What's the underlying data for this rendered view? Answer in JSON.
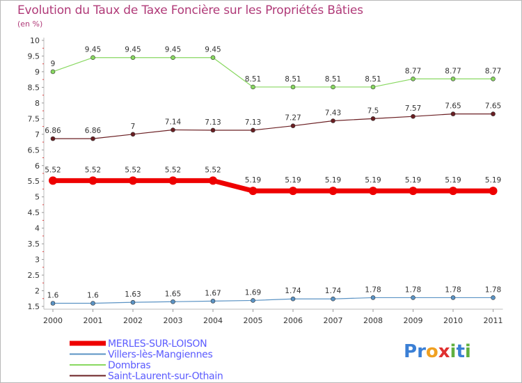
{
  "title": "Evolution du Taux de Taxe Foncière sur les Propriétés Bâties",
  "unit": "(en %)",
  "logo": {
    "text": "Proxiti",
    "letters": [
      "P",
      "r",
      "o",
      "x",
      "i",
      "t",
      "i"
    ],
    "colors": [
      "#3a7fd5",
      "#3a7fd5",
      "#f0a020",
      "#e03030",
      "#60b040",
      "#3a7fd5",
      "#60b040"
    ]
  },
  "chart_data": {
    "type": "line",
    "title": "Evolution du Taux de Taxe Foncière sur les Propriétés Bâties",
    "ylabel": "(en %)",
    "xlabel": "",
    "x": [
      "2000",
      "2001",
      "2002",
      "2003",
      "2004",
      "2005",
      "2006",
      "2007",
      "2008",
      "2009",
      "2010",
      "2011"
    ],
    "ylim": [
      1.5,
      10
    ],
    "yticks": [
      "1.5",
      "2",
      "2.5",
      "3",
      "3.5",
      "4",
      "4.5",
      "5",
      "5.5",
      "6",
      "6.5",
      "7",
      "7.5",
      "8",
      "8.5",
      "9",
      "9.5",
      "10"
    ],
    "series": [
      {
        "name": "MERLES-SUR-LOISON",
        "color": "#ee0000",
        "width": 7,
        "marker": 6,
        "values": [
          5.52,
          5.52,
          5.52,
          5.52,
          5.52,
          5.19,
          5.19,
          5.19,
          5.19,
          5.19,
          5.19,
          5.19
        ],
        "labels": [
          "5.52",
          "5.52",
          "5.52",
          "5.52",
          "5.52",
          "5.19",
          "5.19",
          "5.19",
          "5.19",
          "5.19",
          "5.19",
          "5.19"
        ]
      },
      {
        "name": "Villers-lès-Mangiennes",
        "color": "#5b93c4",
        "width": 1.2,
        "marker": 3,
        "values": [
          1.6,
          1.6,
          1.63,
          1.65,
          1.67,
          1.69,
          1.74,
          1.74,
          1.78,
          1.78,
          1.78,
          1.78
        ],
        "labels": [
          "1.6",
          "1.6",
          "1.63",
          "1.65",
          "1.67",
          "1.69",
          "1.74",
          "1.74",
          "1.78",
          "1.78",
          "1.78",
          "1.78"
        ]
      },
      {
        "name": "Dombras",
        "color": "#88d860",
        "width": 1.2,
        "marker": 3,
        "values": [
          9,
          9.45,
          9.45,
          9.45,
          9.45,
          8.51,
          8.51,
          8.51,
          8.51,
          8.77,
          8.77,
          8.77
        ],
        "labels": [
          "9",
          "9.45",
          "9.45",
          "9.45",
          "9.45",
          "8.51",
          "8.51",
          "8.51",
          "8.51",
          "8.77",
          "8.77",
          "8.77"
        ]
      },
      {
        "name": "Saint-Laurent-sur-Othain",
        "color": "#6a1e22",
        "width": 1.2,
        "marker": 3,
        "values": [
          6.86,
          6.86,
          7,
          7.14,
          7.13,
          7.13,
          7.27,
          7.43,
          7.5,
          7.57,
          7.65,
          7.65
        ],
        "labels": [
          "6.86",
          "6.86",
          "7",
          "7.14",
          "7.13",
          "7.13",
          "7.27",
          "7.43",
          "7.5",
          "7.57",
          "7.65",
          "7.65"
        ]
      }
    ],
    "legend": "bottom-left",
    "grid": false
  }
}
